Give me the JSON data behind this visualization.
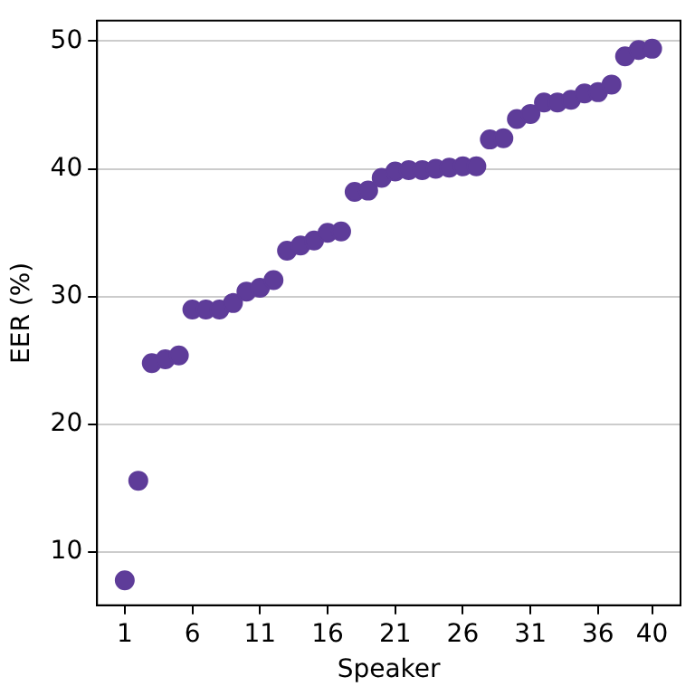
{
  "chart_data": {
    "type": "scatter",
    "xlabel": "Speaker",
    "ylabel": "EER (%)",
    "color": "#5e3c99",
    "marker": "circle",
    "grid": "y",
    "legend": false,
    "x": [
      1,
      2,
      3,
      4,
      5,
      6,
      7,
      8,
      9,
      10,
      11,
      12,
      13,
      14,
      15,
      16,
      17,
      18,
      19,
      20,
      21,
      22,
      23,
      24,
      25,
      26,
      27,
      28,
      29,
      30,
      31,
      32,
      33,
      34,
      35,
      36,
      37,
      38,
      39,
      40
    ],
    "values": [
      7.8,
      15.6,
      24.8,
      25.1,
      25.4,
      29.0,
      29.0,
      29.0,
      29.5,
      30.4,
      30.7,
      31.3,
      33.6,
      34.0,
      34.4,
      35.0,
      35.1,
      38.2,
      38.3,
      39.3,
      39.8,
      39.9,
      39.9,
      40.0,
      40.1,
      40.2,
      40.2,
      42.3,
      42.4,
      43.9,
      44.3,
      45.2,
      45.2,
      45.4,
      45.9,
      46.0,
      46.6,
      48.8,
      49.3,
      49.4
    ],
    "xlim": [
      -1.05,
      42.1
    ],
    "xticks": [
      1,
      6,
      11,
      16,
      21,
      26,
      31,
      36,
      40
    ],
    "ylim": [
      5.85,
      51.6
    ],
    "yticks": [
      10,
      20,
      30,
      40,
      50
    ]
  }
}
